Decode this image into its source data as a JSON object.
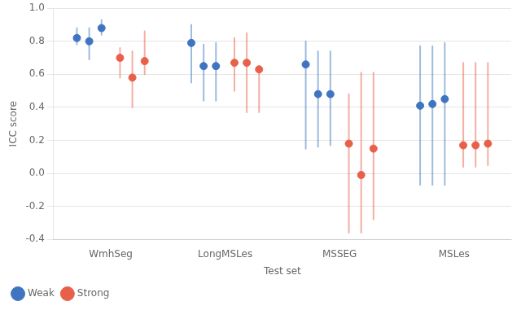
{
  "chart_data": {
    "type": "dot",
    "xlabel": "Test set",
    "ylabel": "ICC score",
    "categories": [
      "WmhSeg",
      "LongMSLes",
      "MSSEG",
      "MSLes"
    ],
    "ylim": [
      -0.4,
      1.0
    ],
    "yticks": [
      -0.4,
      -0.2,
      {
        "value": 0.0,
        "label": "0.0"
      },
      0.2,
      0.4,
      0.6,
      0.8,
      {
        "value": 1.0,
        "label": "1.0"
      }
    ],
    "grid": true,
    "legend": "lower left",
    "marker": "circle",
    "series": [
      {
        "name": "Weak",
        "color": "#3F75C0",
        "values": [
          [
            0.82,
            0.8,
            0.88
          ],
          [
            0.79,
            0.65,
            0.65
          ],
          [
            0.66,
            0.48,
            0.48
          ],
          [
            0.41,
            0.42,
            0.45
          ]
        ],
        "lo": [
          [
            0.78,
            0.69,
            0.84
          ],
          [
            0.55,
            0.44,
            0.44
          ],
          [
            0.15,
            0.16,
            0.17
          ],
          [
            -0.07,
            -0.07,
            -0.07
          ]
        ],
        "hi": [
          [
            0.88,
            0.88,
            0.93
          ],
          [
            0.9,
            0.78,
            0.79
          ],
          [
            0.8,
            0.74,
            0.74
          ],
          [
            0.77,
            0.77,
            0.79
          ]
        ]
      },
      {
        "name": "Strong",
        "color": "#E8604A",
        "values": [
          [
            0.7,
            0.58,
            0.68
          ],
          [
            0.67,
            0.67,
            0.63
          ],
          [
            0.18,
            -0.01,
            0.15
          ],
          [
            0.17,
            0.17,
            0.18
          ]
        ],
        "lo": [
          [
            0.58,
            0.4,
            0.6
          ],
          [
            0.5,
            0.37,
            0.37
          ],
          [
            -0.36,
            -0.36,
            -0.28
          ],
          [
            0.04,
            0.04,
            0.05
          ]
        ],
        "hi": [
          [
            0.76,
            0.74,
            0.86
          ],
          [
            0.82,
            0.85,
            0.65
          ],
          [
            0.48,
            0.61,
            0.61
          ],
          [
            0.67,
            0.67,
            0.67
          ]
        ]
      }
    ]
  }
}
